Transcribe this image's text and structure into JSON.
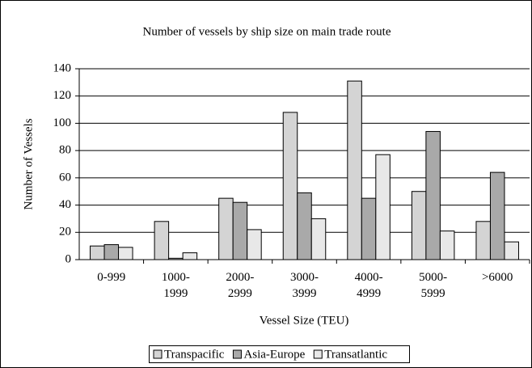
{
  "chart_data": {
    "type": "bar",
    "title": "Number of vessels by ship size on main trade route",
    "x_label": "Vessel Size (TEU)",
    "y_label": "Number of Vessels",
    "categories": [
      "0-999",
      "1000-\n1999",
      "2000-\n2999",
      "3000-\n3999",
      "4000-\n4999",
      "5000-\n5999",
      ">6000"
    ],
    "series": [
      {
        "name": "Transpacific",
        "color": "#d4d4d4",
        "values": [
          10,
          28,
          45,
          108,
          131,
          50,
          28
        ]
      },
      {
        "name": "Asia-Europe",
        "color": "#a9a9a9",
        "values": [
          11,
          1,
          42,
          49,
          45,
          94,
          64
        ]
      },
      {
        "name": "Transatlantic",
        "color": "#e8e8e8",
        "values": [
          9,
          5,
          22,
          30,
          77,
          21,
          13
        ]
      }
    ],
    "ylim": [
      0,
      140
    ],
    "yticks": [
      0,
      20,
      40,
      60,
      80,
      100,
      120,
      140
    ],
    "grid": true,
    "legend": "bottom"
  }
}
